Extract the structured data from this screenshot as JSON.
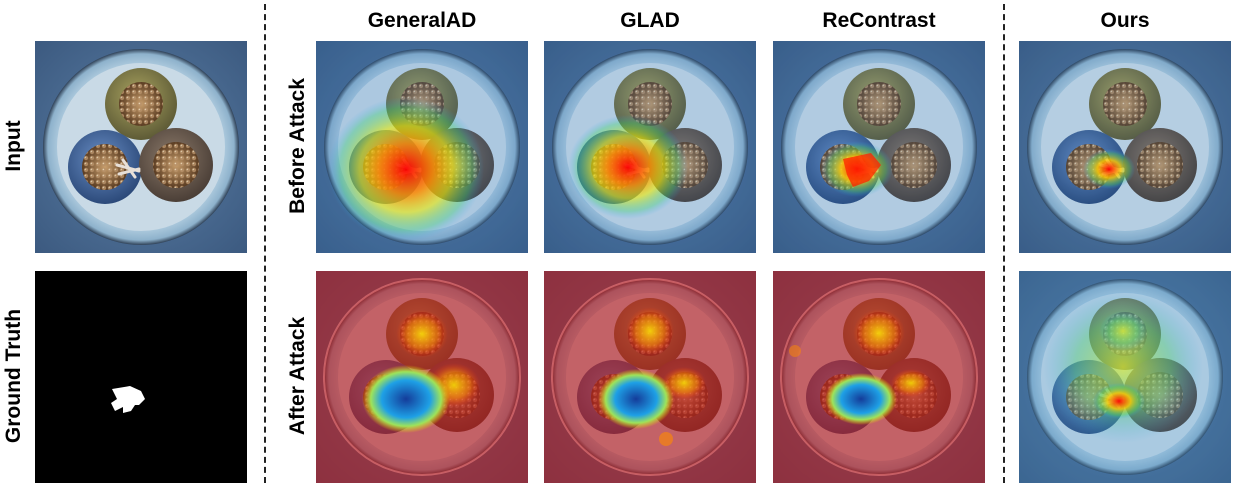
{
  "columns": {
    "generalad": "GeneralAD",
    "glad": "GLAD",
    "recontrast": "ReContrast",
    "ours": "Ours"
  },
  "rows": {
    "input": "Input",
    "ground_truth": "Ground Truth",
    "before_attack": "Before Attack",
    "after_attack": "After Attack"
  }
}
